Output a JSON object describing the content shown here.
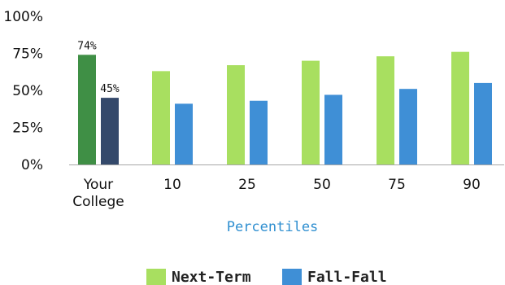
{
  "chart_data": {
    "type": "bar",
    "categories": [
      [
        "Your",
        "College"
      ],
      [
        "10"
      ],
      [
        "25"
      ],
      [
        "50"
      ],
      [
        "75"
      ],
      [
        "90"
      ]
    ],
    "series": [
      {
        "name": "Next-Term",
        "color": "#a8df60",
        "highlight_color": "#3f8f45",
        "values": [
          74,
          63,
          67,
          70,
          73,
          76
        ]
      },
      {
        "name": "Fall-Fall",
        "color": "#3f8fd6",
        "highlight_color": "#34496b",
        "values": [
          45,
          41,
          43,
          47,
          51,
          55
        ]
      }
    ],
    "highlight_category_index": 0,
    "data_labels": [
      {
        "category_index": 0,
        "series_index": 0,
        "text": "74%"
      },
      {
        "category_index": 0,
        "series_index": 1,
        "text": "45%"
      }
    ],
    "yticks": [
      "0%",
      "25%",
      "50%",
      "75%",
      "100%"
    ],
    "ylim": [
      0,
      100
    ],
    "xlabel": "Percentiles",
    "ylabel": "",
    "title": "",
    "grid": false,
    "legend_position": "bottom-center",
    "colors": {
      "axis_line": "#a7a7a7",
      "xlabel": "#2f8fd0"
    }
  }
}
